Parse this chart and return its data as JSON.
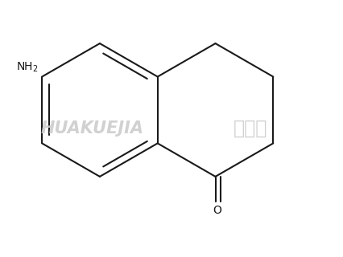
{
  "background_color": "#ffffff",
  "line_color": "#1a1a1a",
  "line_width": 1.5,
  "fig_width": 4.26,
  "fig_height": 3.2,
  "dpi": 100,
  "watermark_text1": "HUAKUEJIA",
  "watermark_text2": "化学加",
  "watermark_color": "#cccccc",
  "nh2_label": "NH",
  "nh2_sub": "2",
  "o_label": "O",
  "font_size_label": 10,
  "font_size_watermark": 15
}
